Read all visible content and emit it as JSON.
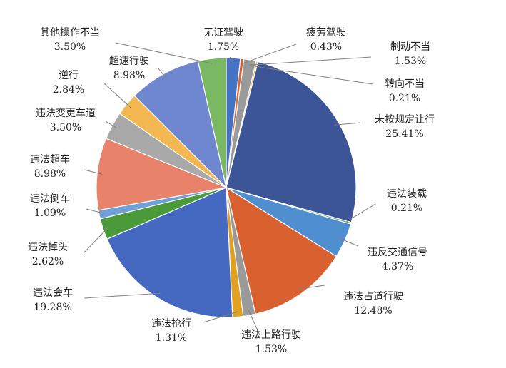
{
  "chart_data": {
    "type": "pie",
    "title": "",
    "start_angle_deg": 90,
    "direction": "clockwise",
    "legend": "none",
    "slices": [
      {
        "name": "无证驾驶",
        "value": 1.75,
        "label": "1.75%",
        "color": "#4472c4"
      },
      {
        "name": "疲劳驾驶",
        "value": 0.43,
        "label": "0.43%",
        "color": "#e0622f"
      },
      {
        "name": "制动不当",
        "value": 1.53,
        "label": "1.53%",
        "color": "#9a9a9a"
      },
      {
        "name": "转向不当",
        "value": 0.21,
        "label": "0.21%",
        "color": "#f2b540"
      },
      {
        "name": "未按规定让行",
        "value": 25.41,
        "label": "25.41%",
        "color": "#3b5597"
      },
      {
        "name": "违法装载",
        "value": 0.21,
        "label": "0.21%",
        "color": "#5e9e3a"
      },
      {
        "name": "违反交通信号",
        "value": 4.37,
        "label": "4.37%",
        "color": "#4f8fd0"
      },
      {
        "name": "违法占道行驶",
        "value": 12.48,
        "label": "12.48%",
        "color": "#d8612f"
      },
      {
        "name": "违法上路行驶",
        "value": 1.53,
        "label": "1.53%",
        "color": "#9a9a9a"
      },
      {
        "name": "违法抢行",
        "value": 1.31,
        "label": "1.31%",
        "color": "#e0a020"
      },
      {
        "name": "违法会车",
        "value": 19.28,
        "label": "19.28%",
        "color": "#4568c0"
      },
      {
        "name": "违法掉头",
        "value": 2.62,
        "label": "2.62%",
        "color": "#4a9a3a"
      },
      {
        "name": "违法倒车",
        "value": 1.09,
        "label": "1.09%",
        "color": "#6fa0d8"
      },
      {
        "name": "违法超车",
        "value": 8.98,
        "label": "8.98%",
        "color": "#e8826a"
      },
      {
        "name": "违法变更车道",
        "value": 3.5,
        "label": "3.50%",
        "color": "#a9a9a9"
      },
      {
        "name": "逆行",
        "value": 2.84,
        "label": "2.84%",
        "color": "#f2b750"
      },
      {
        "name": "超速行驶",
        "value": 8.98,
        "label": "8.98%",
        "color": "#6f87ce"
      },
      {
        "name": "其他操作不当",
        "value": 3.5,
        "label": "3.50%",
        "color": "#7bb864"
      }
    ]
  }
}
